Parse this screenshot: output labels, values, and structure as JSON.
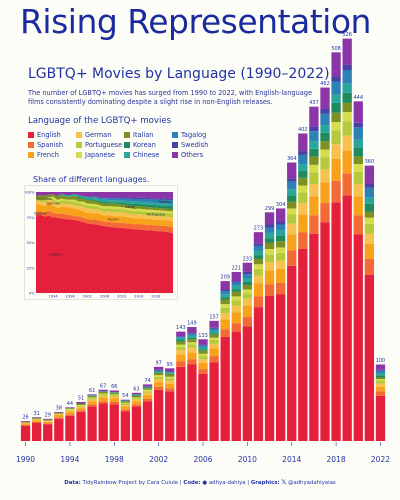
{
  "header": {
    "title": "Rising Representation",
    "subtitle": "LGBTQ+ Movies by Language (1990–2022)",
    "description": "The number of LGBTQ+ movies has surged from 1990 to 2022, with English-language films consistently dominating despite a slight rise in non-English releases."
  },
  "legend": {
    "title": "Language of the LGBTQ+ movies",
    "items": [
      {
        "label": "English",
        "color": "#e5203d"
      },
      {
        "label": "German",
        "color": "#f6c14f"
      },
      {
        "label": "Italian",
        "color": "#7d9122"
      },
      {
        "label": "Tagalog",
        "color": "#2d82b5"
      },
      {
        "label": "Spanish",
        "color": "#f46a36"
      },
      {
        "label": "Portuguese",
        "color": "#b6c93c"
      },
      {
        "label": "Korean",
        "color": "#1e8a5e"
      },
      {
        "label": "Swedish",
        "color": "#4a41a6"
      },
      {
        "label": "French",
        "color": "#f8a21b"
      },
      {
        "label": "Japanese",
        "color": "#d6dd4d"
      },
      {
        "label": "Chinese",
        "color": "#2aa59b"
      },
      {
        "label": "Others",
        "color": "#8b36a6"
      }
    ]
  },
  "inset": {
    "title": "Share of different languages.",
    "y_ticks": [
      "0%",
      "25%",
      "50%",
      "75%",
      "100%"
    ],
    "x_ticks": [
      "1994",
      "1998",
      "2002",
      "2006",
      "2010",
      "2014",
      "2018"
    ],
    "area_labels": [
      "English",
      "French",
      "Spanish",
      "German",
      "Portuguese",
      "Italian",
      "Tagalog",
      "Japanese"
    ]
  },
  "chart_data": [
    {
      "type": "bar",
      "stacked": true,
      "x": [
        1990,
        1991,
        1992,
        1993,
        1994,
        1995,
        1996,
        1997,
        1998,
        1999,
        2000,
        2001,
        2002,
        2003,
        2004,
        2005,
        2006,
        2007,
        2008,
        2009,
        2010,
        2011,
        2012,
        2013,
        2014,
        2015,
        2016,
        2017,
        2018,
        2019,
        2020,
        2021,
        2022
      ],
      "totals": [
        26,
        31,
        29,
        38,
        44,
        51,
        61,
        67,
        66,
        54,
        63,
        74,
        97,
        95,
        143,
        149,
        133,
        157,
        209,
        221,
        233,
        273,
        299,
        304,
        364,
        402,
        437,
        462,
        508,
        526,
        444,
        360,
        100
      ],
      "x_ticks": [
        "1990",
        "1994",
        "1998",
        "2002",
        "2006",
        "2010",
        "2014",
        "2018",
        "2022"
      ],
      "series": [
        {
          "name": "English",
          "values": [
            20,
            24,
            22,
            29,
            33,
            38,
            45,
            49,
            48,
            39,
            45,
            52,
            67,
            65,
            97,
            100,
            88,
            103,
            136,
            143,
            150,
            175,
            190,
            192,
            229,
            251,
            271,
            286,
            312,
            321,
            270,
            217,
            59
          ]
        },
        {
          "name": "Spanish",
          "values": [
            1,
            1,
            1,
            2,
            2,
            2,
            3,
            3,
            3,
            2,
            3,
            3,
            4,
            4,
            7,
            7,
            6,
            8,
            10,
            11,
            12,
            14,
            15,
            15,
            20,
            22,
            24,
            25,
            28,
            29,
            25,
            21,
            6
          ]
        },
        {
          "name": "French",
          "values": [
            2,
            2,
            2,
            3,
            3,
            3,
            4,
            5,
            5,
            4,
            4,
            5,
            6,
            6,
            9,
            9,
            8,
            10,
            13,
            14,
            15,
            17,
            18,
            18,
            21,
            23,
            25,
            27,
            29,
            30,
            25,
            20,
            6
          ]
        },
        {
          "name": "German",
          "values": [
            1,
            1,
            1,
            1,
            2,
            2,
            2,
            2,
            2,
            2,
            2,
            3,
            4,
            4,
            6,
            6,
            5,
            6,
            8,
            9,
            9,
            10,
            11,
            11,
            14,
            15,
            16,
            17,
            19,
            19,
            16,
            13,
            4
          ]
        },
        {
          "name": "Portuguese",
          "values": [
            0,
            1,
            1,
            1,
            1,
            1,
            2,
            2,
            2,
            2,
            2,
            2,
            3,
            3,
            4,
            4,
            4,
            5,
            7,
            7,
            7,
            9,
            10,
            10,
            12,
            14,
            15,
            16,
            18,
            19,
            16,
            13,
            4
          ]
        },
        {
          "name": "Japanese",
          "values": [
            0,
            0,
            0,
            0,
            1,
            1,
            1,
            1,
            1,
            1,
            1,
            2,
            2,
            2,
            3,
            3,
            3,
            3,
            5,
            5,
            5,
            6,
            7,
            7,
            8,
            9,
            10,
            10,
            11,
            12,
            10,
            8,
            2
          ]
        },
        {
          "name": "Italian",
          "values": [
            1,
            1,
            1,
            1,
            1,
            2,
            2,
            2,
            2,
            2,
            2,
            2,
            3,
            3,
            4,
            4,
            4,
            4,
            6,
            6,
            6,
            7,
            8,
            8,
            9,
            10,
            11,
            11,
            12,
            12,
            10,
            8,
            2
          ]
        },
        {
          "name": "Korean",
          "values": [
            0,
            0,
            0,
            0,
            0,
            0,
            0,
            0,
            0,
            0,
            1,
            1,
            1,
            1,
            2,
            2,
            2,
            2,
            3,
            3,
            4,
            5,
            6,
            7,
            8,
            9,
            10,
            11,
            13,
            13,
            12,
            10,
            3
          ]
        },
        {
          "name": "Chinese",
          "values": [
            0,
            0,
            0,
            0,
            0,
            0,
            1,
            1,
            1,
            1,
            1,
            1,
            2,
            2,
            3,
            3,
            3,
            3,
            4,
            5,
            5,
            6,
            7,
            7,
            8,
            9,
            10,
            10,
            11,
            12,
            10,
            8,
            2
          ]
        },
        {
          "name": "Tagalog",
          "values": [
            0,
            0,
            0,
            0,
            0,
            0,
            0,
            0,
            0,
            0,
            0,
            0,
            0,
            0,
            1,
            2,
            2,
            3,
            4,
            4,
            5,
            6,
            7,
            8,
            10,
            12,
            13,
            15,
            17,
            18,
            16,
            13,
            4
          ]
        },
        {
          "name": "Swedish",
          "values": [
            0,
            0,
            0,
            0,
            0,
            0,
            0,
            0,
            0,
            0,
            0,
            0,
            1,
            1,
            1,
            1,
            1,
            1,
            2,
            2,
            3,
            3,
            4,
            4,
            4,
            5,
            6,
            6,
            7,
            7,
            6,
            5,
            1
          ]
        },
        {
          "name": "Others",
          "values": [
            1,
            1,
            1,
            1,
            1,
            2,
            1,
            2,
            2,
            1,
            2,
            3,
            4,
            4,
            6,
            8,
            7,
            9,
            11,
            12,
            12,
            15,
            16,
            17,
            21,
            23,
            26,
            28,
            31,
            34,
            28,
            24,
            7
          ]
        }
      ]
    },
    {
      "type": "area",
      "stacked": true,
      "normalized": true,
      "x": [
        1990,
        1991,
        1992,
        1993,
        1994,
        1995,
        1996,
        1997,
        1998,
        1999,
        2000,
        2001,
        2002,
        2003,
        2004,
        2005,
        2006,
        2007,
        2008,
        2009,
        2010,
        2011,
        2012,
        2013,
        2014,
        2015,
        2016,
        2017,
        2018,
        2019,
        2020,
        2021,
        2022
      ],
      "ylim": [
        0,
        100
      ]
    }
  ],
  "footer": {
    "data_label": "Data:",
    "data_text": "TidyRainbow Project by Cara Cuiule",
    "code_label": "Code:",
    "code_text": "adhya-dahiya",
    "graphics_label": "Graphics:",
    "graphics_text": "@adhyadahiyaias"
  }
}
